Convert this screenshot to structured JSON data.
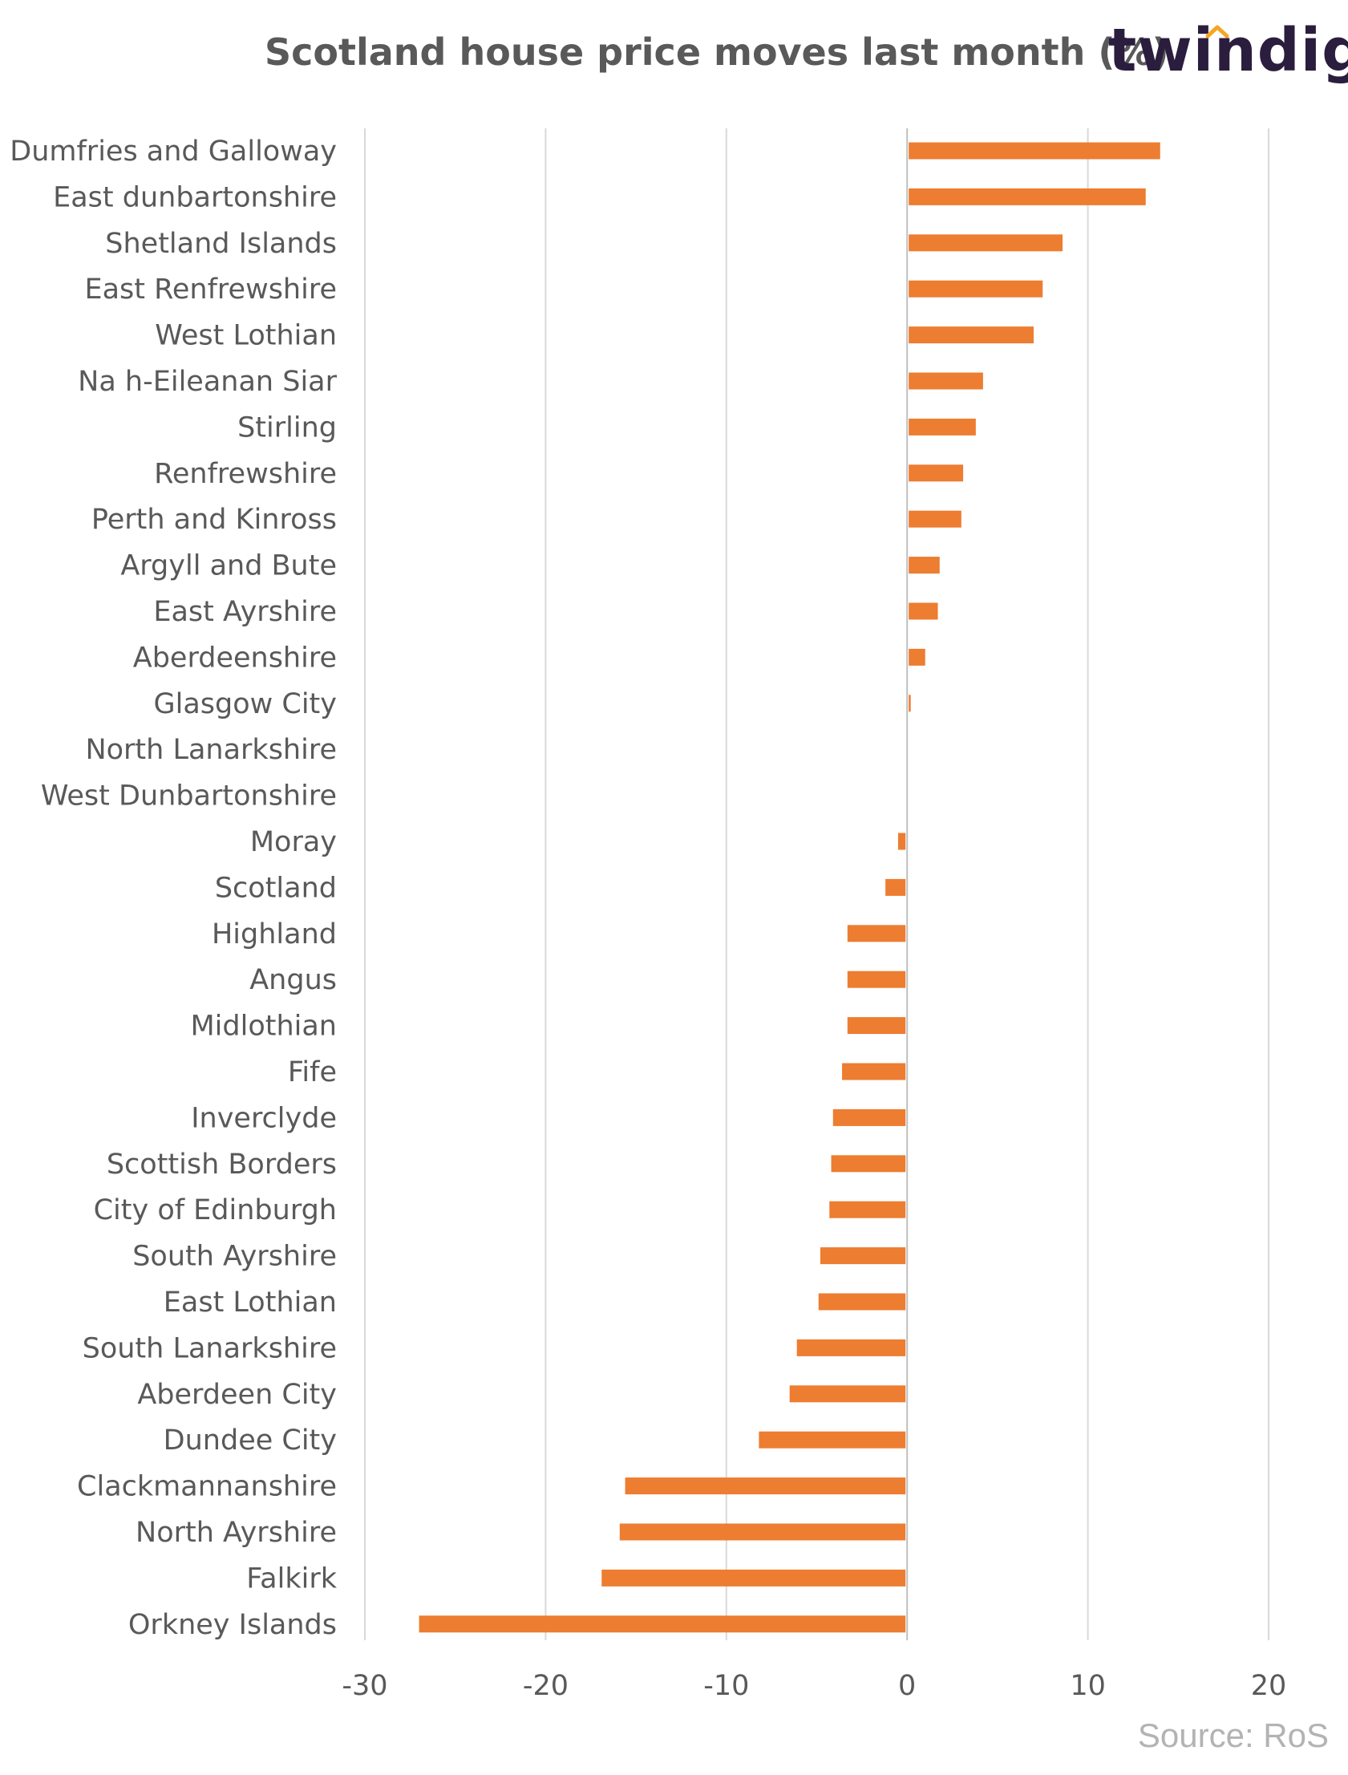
{
  "header": {
    "title": "Scotland house price moves last month (%)",
    "brand": "twindig"
  },
  "footer": {
    "source": "Source: RoS"
  },
  "colors": {
    "bar": "#ED7D31",
    "grid": "#D9D9D9",
    "text": "#595959",
    "brand": "#2B1D3D",
    "brand_accent": "#F5A623"
  },
  "chart_data": {
    "type": "bar",
    "orientation": "horizontal",
    "title": "Scotland house price moves last month (%)",
    "xlim": [
      -30,
      20
    ],
    "xticks": [
      -30,
      -20,
      -10,
      0,
      10,
      20
    ],
    "grid": "vertical",
    "categories": [
      "Dumfries and Galloway",
      "East dunbartonshire",
      "Shetland Islands",
      "East Renfrewshire",
      "West Lothian",
      "Na h-Eileanan Siar",
      "Stirling",
      "Renfrewshire",
      "Perth and Kinross",
      "Argyll and Bute",
      "East Ayrshire",
      "Aberdeenshire",
      "Glasgow City",
      "North Lanarkshire",
      "West Dunbartonshire",
      "Moray",
      "Scotland",
      "Highland",
      "Angus",
      "Midlothian",
      "Fife",
      "Inverclyde",
      "Scottish Borders",
      "City of Edinburgh",
      "South Ayrshire",
      "East Lothian",
      "South Lanarkshire",
      "Aberdeen City",
      "Dundee City",
      "Clackmannanshire",
      "North Ayrshire",
      "Falkirk",
      "Orkney Islands"
    ],
    "values": [
      14.0,
      13.2,
      8.6,
      7.5,
      7.0,
      4.2,
      3.8,
      3.1,
      3.0,
      1.8,
      1.7,
      1.0,
      0.2,
      0.0,
      0.0,
      -0.5,
      -1.2,
      -3.3,
      -3.3,
      -3.3,
      -3.6,
      -4.1,
      -4.2,
      -4.3,
      -4.8,
      -4.9,
      -6.1,
      -6.5,
      -8.2,
      -15.6,
      -15.9,
      -16.9,
      -27.0
    ]
  }
}
